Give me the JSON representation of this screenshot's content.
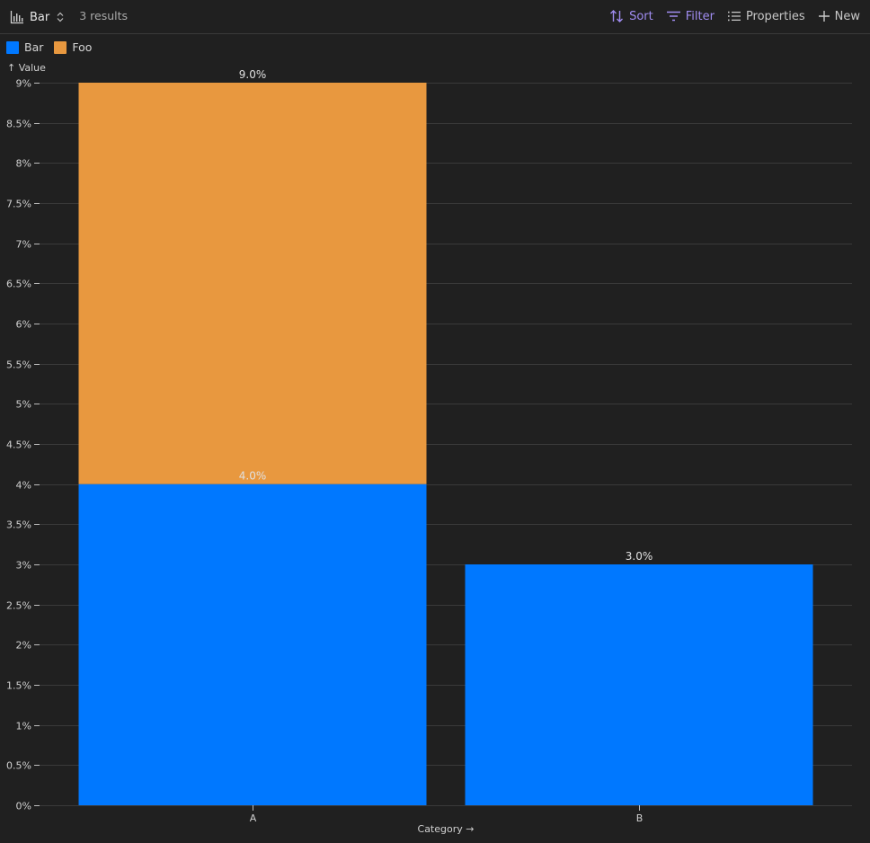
{
  "toolbar": {
    "view_label": "Bar",
    "results_label": "3 results",
    "sort_label": "Sort",
    "filter_label": "Filter",
    "properties_label": "Properties",
    "new_label": "New",
    "accent_color": "#a08cf0"
  },
  "icons": [
    "bar-chart-icon",
    "chevron-updown-icon",
    "sort-icon",
    "filter-icon",
    "properties-icon",
    "plus-icon"
  ],
  "chart_data": {
    "type": "bar",
    "stacked": true,
    "categories": [
      "A",
      "B"
    ],
    "series": [
      {
        "name": "Bar",
        "color": "#0078ff",
        "values": [
          4.0,
          3.0
        ]
      },
      {
        "name": "Foo",
        "color": "#e8983f",
        "values": [
          5.0,
          0
        ]
      }
    ],
    "data_labels": [
      {
        "category": "A",
        "text": "4.0%",
        "value": 4.0
      },
      {
        "category": "A",
        "text": "9.0%",
        "value": 9.0
      },
      {
        "category": "B",
        "text": "3.0%",
        "value": 3.0
      }
    ],
    "ylabel": "↑ Value",
    "xlabel": "Category →",
    "ylim": [
      0,
      9
    ],
    "yticks": [
      0,
      0.5,
      1,
      1.5,
      2,
      2.5,
      3,
      3.5,
      4,
      4.5,
      5,
      5.5,
      6,
      6.5,
      7,
      7.5,
      8,
      8.5,
      9
    ],
    "ytick_labels": [
      "0%",
      "0.5%",
      "1%",
      "1.5%",
      "2%",
      "2.5%",
      "3%",
      "3.5%",
      "4%",
      "4.5%",
      "5%",
      "5.5%",
      "6%",
      "6.5%",
      "7%",
      "7.5%",
      "8%",
      "8.5%",
      "9%"
    ],
    "grid": true,
    "legend_position": "top-left"
  }
}
